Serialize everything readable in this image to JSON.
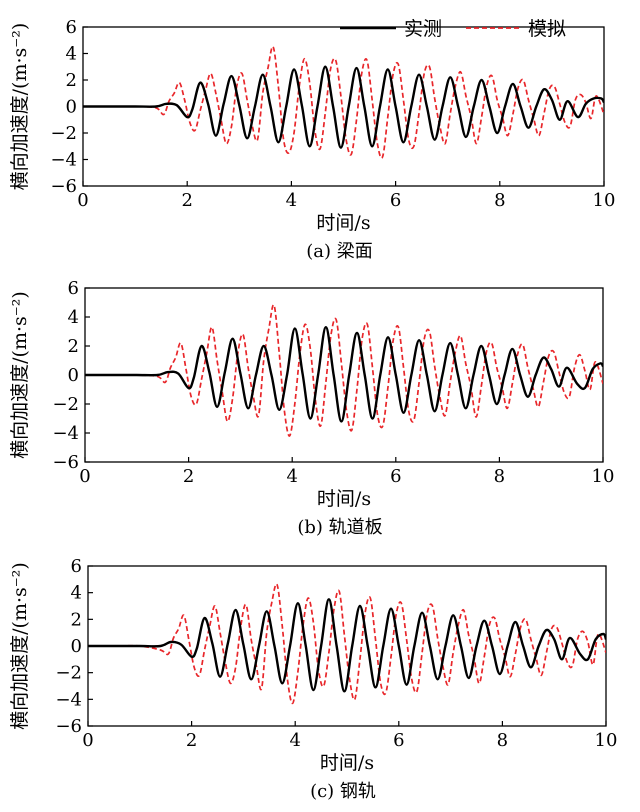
{
  "chart_data": [
    {
      "type": "line",
      "caption": "(a) 梁面",
      "xlabel": "时间/s",
      "ylabel": "横向加速度/(m·s⁻²)",
      "xlim": [
        0,
        10
      ],
      "ylim": [
        -6,
        6
      ],
      "xticks": [
        0,
        2,
        4,
        6,
        8,
        10
      ],
      "yticks": [
        -6,
        -4,
        -2,
        0,
        2,
        4,
        6
      ],
      "legend": {
        "placement": "top-right",
        "entries": [
          "实测",
          "模拟"
        ]
      },
      "series": [
        {
          "name": "实测",
          "style": "solid",
          "color": "#000000",
          "x": [
            0,
            0.5,
            1.0,
            1.4,
            1.6,
            1.8,
            2.0,
            2.1,
            2.25,
            2.4,
            2.55,
            2.7,
            2.85,
            3.0,
            3.15,
            3.3,
            3.45,
            3.6,
            3.75,
            3.9,
            4.05,
            4.2,
            4.35,
            4.5,
            4.65,
            4.8,
            4.95,
            5.1,
            5.25,
            5.4,
            5.55,
            5.7,
            5.85,
            6.0,
            6.15,
            6.3,
            6.45,
            6.6,
            6.75,
            6.9,
            7.05,
            7.2,
            7.35,
            7.5,
            7.65,
            7.8,
            7.95,
            8.1,
            8.25,
            8.4,
            8.55,
            8.7,
            8.85,
            9.0,
            9.15,
            9.3,
            9.5,
            9.65,
            9.8,
            9.95,
            10.0
          ],
          "y": [
            0,
            0,
            0,
            0,
            0.2,
            0.1,
            -0.8,
            -0.2,
            1.8,
            0.2,
            -2.2,
            0.2,
            2.3,
            0.1,
            -2.4,
            0,
            2.4,
            0,
            -2.7,
            0,
            2.8,
            0.1,
            -3.0,
            0,
            3.0,
            0,
            -3.1,
            0,
            2.9,
            0,
            -3.0,
            0,
            2.8,
            0,
            -2.7,
            0,
            2.4,
            0,
            -2.5,
            0,
            2.2,
            0,
            -2.3,
            0,
            2.0,
            0,
            -2.0,
            0,
            1.7,
            0,
            -1.6,
            0,
            1.3,
            0.5,
            -1.0,
            0.4,
            -0.8,
            0.2,
            0.6,
            0.6,
            0.3
          ]
        },
        {
          "name": "模拟",
          "style": "dashed",
          "color": "#e8262a",
          "x": [
            0,
            0.5,
            1.0,
            1.4,
            1.55,
            1.65,
            1.75,
            1.85,
            1.95,
            2.05,
            2.15,
            2.25,
            2.35,
            2.45,
            2.55,
            2.65,
            2.75,
            2.85,
            2.95,
            3.05,
            3.15,
            3.25,
            3.35,
            3.45,
            3.55,
            3.65,
            3.75,
            3.85,
            3.95,
            4.05,
            4.15,
            4.25,
            4.35,
            4.45,
            4.55,
            4.65,
            4.75,
            4.85,
            4.95,
            5.05,
            5.15,
            5.25,
            5.35,
            5.45,
            5.55,
            5.65,
            5.75,
            5.85,
            5.95,
            6.05,
            6.15,
            6.25,
            6.35,
            6.45,
            6.55,
            6.65,
            6.75,
            6.85,
            6.95,
            7.05,
            7.15,
            7.25,
            7.35,
            7.45,
            7.55,
            7.65,
            7.75,
            7.85,
            7.95,
            8.05,
            8.15,
            8.25,
            8.35,
            8.45,
            8.55,
            8.65,
            8.75,
            8.85,
            8.95,
            9.05,
            9.15,
            9.25,
            9.35,
            9.45,
            9.55,
            9.65,
            9.75,
            9.85,
            10.0
          ],
          "y": [
            0,
            0,
            0,
            -0.1,
            -0.6,
            0.4,
            1.0,
            1.8,
            0.5,
            -1.2,
            -1.8,
            -0.3,
            1.2,
            2.5,
            1.0,
            -1.0,
            -2.8,
            -1.5,
            1.5,
            2.5,
            0.5,
            -1.5,
            -2.5,
            1.0,
            2.9,
            4.5,
            1.5,
            -2.5,
            -3.5,
            -2.0,
            1.5,
            3.6,
            1.8,
            -1.8,
            -3.2,
            -0.5,
            2.8,
            3.5,
            0.8,
            -2.5,
            -3.6,
            -1.0,
            2.5,
            3.5,
            0.5,
            -2.8,
            -3.8,
            -0.8,
            2.4,
            3.2,
            0.5,
            -2.5,
            -3.0,
            -0.5,
            2.5,
            3.0,
            0.6,
            -1.5,
            -2.8,
            -0.5,
            1.6,
            2.6,
            0.8,
            -0.8,
            -2.8,
            -0.8,
            1.6,
            2.3,
            0.5,
            -0.8,
            -2.2,
            -0.6,
            1.4,
            2.0,
            0.5,
            -0.9,
            -2.2,
            -0.5,
            1.3,
            1.5,
            0.2,
            -1.2,
            -1.5,
            0.5,
            0.9,
            0.3,
            -0.9,
            0.8,
            -0.6
          ]
        }
      ]
    },
    {
      "type": "line",
      "caption": "(b) 轨道板",
      "xlabel": "时间/s",
      "ylabel": "横向加速度/(m·s⁻²)",
      "xlim": [
        0,
        10
      ],
      "ylim": [
        -6,
        6
      ],
      "xticks": [
        0,
        2,
        4,
        6,
        8,
        10
      ],
      "yticks": [
        -6,
        -4,
        -2,
        0,
        2,
        4,
        6
      ],
      "series": [
        {
          "name": "实测",
          "style": "solid",
          "color": "#000000",
          "x": [
            0,
            0.5,
            1.0,
            1.4,
            1.6,
            1.8,
            2.0,
            2.1,
            2.25,
            2.4,
            2.55,
            2.7,
            2.85,
            3.0,
            3.15,
            3.3,
            3.45,
            3.6,
            3.75,
            3.9,
            4.05,
            4.2,
            4.35,
            4.5,
            4.65,
            4.8,
            4.95,
            5.1,
            5.25,
            5.4,
            5.55,
            5.7,
            5.85,
            6.0,
            6.15,
            6.3,
            6.45,
            6.6,
            6.75,
            6.9,
            7.05,
            7.2,
            7.35,
            7.5,
            7.65,
            7.8,
            7.95,
            8.1,
            8.25,
            8.4,
            8.55,
            8.7,
            8.85,
            9.0,
            9.15,
            9.3,
            9.5,
            9.65,
            9.8,
            9.95,
            10.0
          ],
          "y": [
            0,
            0,
            0,
            0,
            0.2,
            0.1,
            -0.9,
            -0.2,
            2.0,
            0.2,
            -2.2,
            0.2,
            2.5,
            0.1,
            -2.3,
            0,
            2.0,
            0,
            -2.4,
            0,
            3.2,
            0.1,
            -3.0,
            0,
            3.3,
            0,
            -3.2,
            0,
            2.9,
            0,
            -3.0,
            0,
            2.6,
            0,
            -2.6,
            0,
            2.4,
            0,
            -2.5,
            0,
            2.2,
            0,
            -2.3,
            0,
            2.0,
            0,
            -2.0,
            0,
            1.8,
            0,
            -1.5,
            0,
            1.2,
            0.4,
            -0.8,
            0.5,
            -0.6,
            -0.9,
            0.4,
            0.8,
            0.6
          ]
        },
        {
          "name": "模拟",
          "style": "dashed",
          "color": "#e8262a",
          "x": [
            0,
            0.5,
            1.0,
            1.4,
            1.55,
            1.65,
            1.75,
            1.85,
            1.95,
            2.05,
            2.15,
            2.25,
            2.35,
            2.45,
            2.55,
            2.65,
            2.75,
            2.85,
            2.95,
            3.05,
            3.15,
            3.25,
            3.35,
            3.45,
            3.55,
            3.65,
            3.75,
            3.85,
            3.95,
            4.05,
            4.15,
            4.25,
            4.35,
            4.45,
            4.55,
            4.65,
            4.75,
            4.85,
            4.95,
            5.05,
            5.15,
            5.25,
            5.35,
            5.45,
            5.55,
            5.65,
            5.75,
            5.85,
            5.95,
            6.05,
            6.15,
            6.25,
            6.35,
            6.45,
            6.55,
            6.65,
            6.75,
            6.85,
            6.95,
            7.05,
            7.15,
            7.25,
            7.35,
            7.45,
            7.55,
            7.65,
            7.75,
            7.85,
            7.95,
            8.05,
            8.15,
            8.25,
            8.35,
            8.45,
            8.55,
            8.65,
            8.75,
            8.85,
            8.95,
            9.05,
            9.15,
            9.25,
            9.35,
            9.45,
            9.55,
            9.65,
            9.75,
            9.85,
            10.0
          ],
          "y": [
            0,
            0,
            0,
            -0.1,
            -0.5,
            0.5,
            1.2,
            2.2,
            0.4,
            -1.5,
            -2.0,
            -0.3,
            1.5,
            3.3,
            1.0,
            -1.2,
            -3.2,
            -1.6,
            1.5,
            2.8,
            0.5,
            -1.5,
            -2.8,
            1.0,
            3.2,
            4.8,
            1.5,
            -2.5,
            -4.2,
            -2.0,
            1.5,
            3.5,
            1.8,
            -1.8,
            -3.5,
            -0.5,
            2.8,
            3.8,
            0.8,
            -2.5,
            -3.8,
            -1.0,
            2.5,
            3.5,
            0.5,
            -2.8,
            -3.5,
            -0.8,
            2.4,
            3.3,
            0.5,
            -2.5,
            -3.1,
            -0.5,
            2.5,
            3.0,
            0.6,
            -1.5,
            -2.8,
            -0.5,
            1.6,
            2.7,
            0.8,
            -0.8,
            -2.9,
            -0.8,
            1.6,
            2.2,
            0.5,
            -0.8,
            -2.3,
            -0.6,
            1.4,
            2.1,
            0.5,
            -0.9,
            -2.2,
            -0.5,
            1.3,
            1.6,
            0.2,
            -1.2,
            -1.5,
            0.5,
            1.4,
            0.3,
            -1.0,
            0.9,
            -0.6
          ]
        }
      ]
    },
    {
      "type": "line",
      "caption": "(c) 钢轨",
      "xlabel": "时间/s",
      "ylabel": "横向加速度/(m·s⁻²)",
      "xlim": [
        0,
        10
      ],
      "ylim": [
        -6,
        6
      ],
      "xticks": [
        0,
        2,
        4,
        6,
        8,
        10
      ],
      "yticks": [
        -6,
        -4,
        -2,
        0,
        2,
        4,
        6
      ],
      "series": [
        {
          "name": "实测",
          "style": "solid",
          "color": "#000000",
          "x": [
            0,
            0.5,
            1.0,
            1.4,
            1.6,
            1.8,
            2.0,
            2.1,
            2.25,
            2.4,
            2.55,
            2.7,
            2.85,
            3.0,
            3.15,
            3.3,
            3.45,
            3.6,
            3.75,
            3.9,
            4.05,
            4.2,
            4.35,
            4.5,
            4.65,
            4.8,
            4.95,
            5.1,
            5.25,
            5.4,
            5.55,
            5.7,
            5.85,
            6.0,
            6.15,
            6.3,
            6.45,
            6.6,
            6.75,
            6.9,
            7.05,
            7.2,
            7.35,
            7.5,
            7.65,
            7.8,
            7.95,
            8.1,
            8.25,
            8.4,
            8.55,
            8.7,
            8.85,
            9.0,
            9.15,
            9.3,
            9.5,
            9.65,
            9.8,
            9.95,
            10.0
          ],
          "y": [
            0,
            0,
            0,
            0,
            0.3,
            0.1,
            -0.8,
            -0.2,
            2.1,
            0.2,
            -2.3,
            0.2,
            2.7,
            0.1,
            -2.5,
            0,
            2.6,
            0,
            -2.8,
            0,
            3.2,
            0.1,
            -3.3,
            0,
            3.5,
            0,
            -3.4,
            0,
            3.0,
            0,
            -3.1,
            0,
            2.8,
            0,
            -2.9,
            0,
            2.5,
            0,
            -2.5,
            0,
            2.3,
            0,
            -2.4,
            0,
            1.9,
            0,
            -2.1,
            0,
            1.8,
            0,
            -1.6,
            0,
            1.2,
            0.5,
            -1.0,
            0.6,
            -0.6,
            -1.0,
            0.5,
            0.9,
            0.5
          ]
        },
        {
          "name": "模拟",
          "style": "dashed",
          "color": "#e8262a",
          "x": [
            0,
            0.5,
            1.0,
            1.4,
            1.55,
            1.65,
            1.75,
            1.85,
            1.95,
            2.05,
            2.15,
            2.25,
            2.35,
            2.45,
            2.55,
            2.65,
            2.75,
            2.85,
            2.95,
            3.05,
            3.15,
            3.25,
            3.35,
            3.45,
            3.55,
            3.65,
            3.75,
            3.85,
            3.95,
            4.05,
            4.15,
            4.25,
            4.35,
            4.45,
            4.55,
            4.65,
            4.75,
            4.85,
            4.95,
            5.05,
            5.15,
            5.25,
            5.35,
            5.45,
            5.55,
            5.65,
            5.75,
            5.85,
            5.95,
            6.05,
            6.15,
            6.25,
            6.35,
            6.45,
            6.55,
            6.65,
            6.75,
            6.85,
            6.95,
            7.05,
            7.15,
            7.25,
            7.35,
            7.45,
            7.55,
            7.65,
            7.75,
            7.85,
            7.95,
            8.05,
            8.15,
            8.25,
            8.35,
            8.45,
            8.55,
            8.65,
            8.75,
            8.85,
            8.95,
            9.05,
            9.15,
            9.25,
            9.35,
            9.45,
            9.55,
            9.65,
            9.75,
            9.85,
            10.0
          ],
          "y": [
            0,
            0,
            0,
            -0.3,
            -0.6,
            0.6,
            1.3,
            2.3,
            0.4,
            -1.6,
            -2.2,
            -0.3,
            1.5,
            3.0,
            1.0,
            -1.2,
            -2.8,
            -1.6,
            1.5,
            3.1,
            0.5,
            -1.5,
            -3.2,
            1.0,
            3.3,
            4.6,
            1.5,
            -2.5,
            -4.3,
            -2.0,
            1.5,
            3.6,
            1.8,
            -1.8,
            -3.0,
            -0.5,
            2.8,
            4.1,
            0.8,
            -2.5,
            -4.0,
            -1.0,
            2.5,
            3.6,
            0.5,
            -2.8,
            -3.5,
            -0.8,
            2.4,
            3.2,
            0.5,
            -2.5,
            -3.4,
            -0.5,
            2.5,
            3.0,
            0.6,
            -1.5,
            -2.9,
            -0.5,
            1.6,
            2.7,
            0.8,
            -0.8,
            -2.8,
            -0.8,
            1.6,
            2.1,
            0.5,
            -0.8,
            -2.3,
            -0.6,
            1.4,
            2.0,
            0.5,
            -0.9,
            -2.2,
            -0.5,
            1.3,
            1.4,
            0.2,
            -1.2,
            -1.5,
            0.5,
            1.1,
            0.3,
            -1.4,
            0.9,
            -0.5
          ]
        }
      ]
    }
  ]
}
